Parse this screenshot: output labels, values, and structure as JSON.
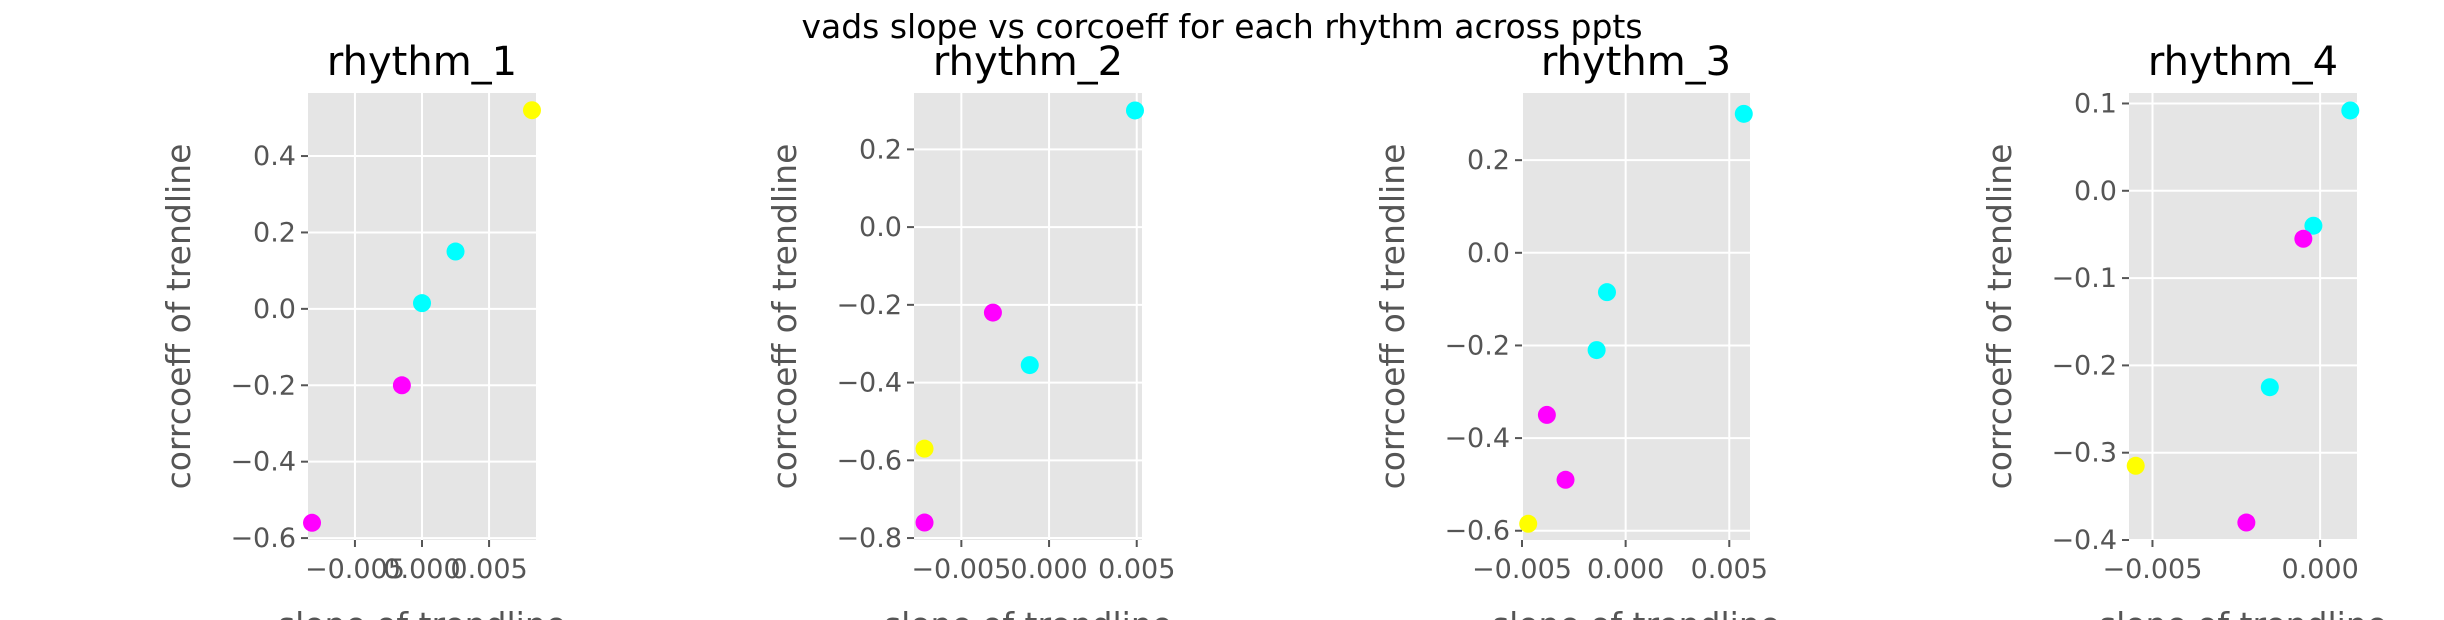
{
  "suptitle": "vads slope vs corcoeff for each rhythm across ppts",
  "colors": {
    "panel_bg": "#E5E5E5",
    "grid": "#FFFFFF",
    "tick_text": "#555555",
    "magenta": "#FF00FF",
    "cyan": "#00FFFF",
    "yellow": "#FFFF00"
  },
  "chart_data": [
    {
      "type": "scatter",
      "title": "rhythm_1",
      "xlabel": "slope of trendline",
      "ylabel": "corrcoeff of trendline",
      "xlim": [
        -0.0085,
        0.0085
      ],
      "ylim": [
        -0.605,
        0.565
      ],
      "xticks": [
        -0.005,
        0.0,
        0.005
      ],
      "xtick_labels": [
        "−0.005",
        "0.000",
        "0.005"
      ],
      "yticks": [
        -0.6,
        -0.4,
        -0.2,
        0.0,
        0.2,
        0.4
      ],
      "ytick_labels": [
        "−0.6",
        "−0.4",
        "−0.2",
        "0.0",
        "0.2",
        "0.4"
      ],
      "grid": true,
      "points": [
        {
          "x": 0.0082,
          "y": 0.52,
          "color": "yellow"
        },
        {
          "x": 0.0025,
          "y": 0.15,
          "color": "cyan"
        },
        {
          "x": 0.0,
          "y": 0.015,
          "color": "cyan"
        },
        {
          "x": -0.0015,
          "y": -0.2,
          "color": "magenta"
        },
        {
          "x": -0.0082,
          "y": -0.56,
          "color": "magenta"
        }
      ]
    },
    {
      "type": "scatter",
      "title": "rhythm_2",
      "xlabel": "slope of trendline",
      "ylabel": "corrcoeff of trendline",
      "xlim": [
        -0.0077,
        0.0053
      ],
      "ylim": [
        -0.805,
        0.345
      ],
      "xticks": [
        -0.005,
        0.0,
        0.005
      ],
      "xtick_labels": [
        "−0.005",
        "0.000",
        "0.005"
      ],
      "yticks": [
        -0.8,
        -0.6,
        -0.4,
        -0.2,
        0.0,
        0.2
      ],
      "ytick_labels": [
        "−0.8",
        "−0.6",
        "−0.4",
        "−0.2",
        "0.0",
        "0.2"
      ],
      "grid": true,
      "points": [
        {
          "x": 0.0049,
          "y": 0.3,
          "color": "cyan"
        },
        {
          "x": -0.0032,
          "y": -0.22,
          "color": "magenta"
        },
        {
          "x": -0.0011,
          "y": -0.355,
          "color": "cyan"
        },
        {
          "x": -0.0071,
          "y": -0.57,
          "color": "yellow"
        },
        {
          "x": -0.0071,
          "y": -0.76,
          "color": "magenta"
        }
      ]
    },
    {
      "type": "scatter",
      "title": "rhythm_3",
      "xlabel": "slope of trendline",
      "ylabel": "corrcoeff of trendline",
      "xlim": [
        -0.005,
        0.006
      ],
      "ylim": [
        -0.62,
        0.345
      ],
      "xticks": [
        -0.005,
        0.0,
        0.005
      ],
      "xtick_labels": [
        "−0.005",
        "0.000",
        "0.005"
      ],
      "yticks": [
        -0.6,
        -0.4,
        -0.2,
        0.0,
        0.2
      ],
      "ytick_labels": [
        "−0.6",
        "−0.4",
        "−0.2",
        "0.0",
        "0.2"
      ],
      "grid": true,
      "points": [
        {
          "x": 0.0057,
          "y": 0.3,
          "color": "cyan"
        },
        {
          "x": -0.0009,
          "y": -0.085,
          "color": "cyan"
        },
        {
          "x": -0.0014,
          "y": -0.21,
          "color": "cyan"
        },
        {
          "x": -0.0038,
          "y": -0.35,
          "color": "magenta"
        },
        {
          "x": -0.0029,
          "y": -0.49,
          "color": "magenta"
        },
        {
          "x": -0.0047,
          "y": -0.585,
          "color": "yellow"
        }
      ]
    },
    {
      "type": "scatter",
      "title": "rhythm_4",
      "xlabel": "slope of trendline",
      "ylabel": "corrcoeff of trendline",
      "xlim": [
        -0.0057,
        0.0011
      ],
      "ylim": [
        -0.4,
        0.112
      ],
      "xticks": [
        -0.005,
        0.0
      ],
      "xtick_labels": [
        "−0.005",
        "0.000"
      ],
      "yticks": [
        -0.4,
        -0.3,
        -0.2,
        -0.1,
        0.0,
        0.1
      ],
      "ytick_labels": [
        "−0.4",
        "−0.3",
        "−0.2",
        "−0.1",
        "0.0",
        "0.1"
      ],
      "grid": true,
      "points": [
        {
          "x": 0.0009,
          "y": 0.092,
          "color": "cyan"
        },
        {
          "x": -0.0002,
          "y": -0.04,
          "color": "cyan"
        },
        {
          "x": -0.0005,
          "y": -0.055,
          "color": "magenta"
        },
        {
          "x": -0.0015,
          "y": -0.225,
          "color": "cyan"
        },
        {
          "x": -0.0055,
          "y": -0.315,
          "color": "yellow"
        },
        {
          "x": -0.0022,
          "y": -0.38,
          "color": "magenta"
        }
      ]
    }
  ]
}
